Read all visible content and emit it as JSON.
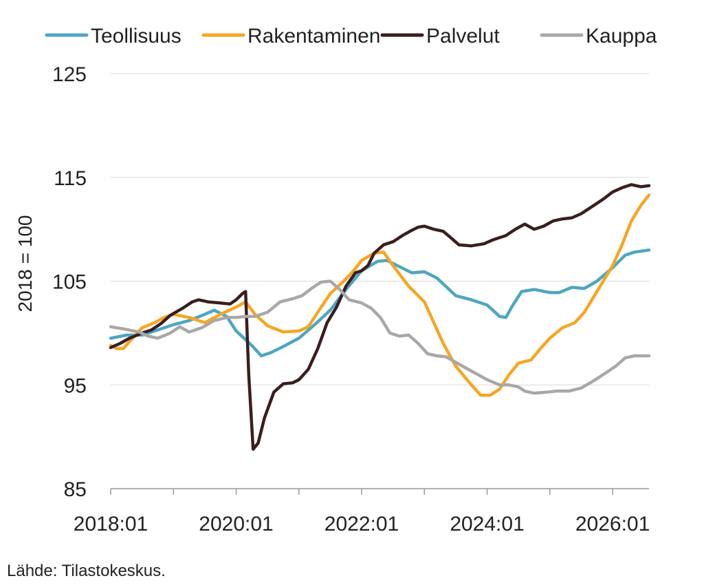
{
  "chart_data": {
    "type": "line",
    "ylabel": "2018 = 100",
    "xlabel": "",
    "ylim": [
      85,
      125
    ],
    "yticks": [
      85,
      95,
      105,
      115,
      125
    ],
    "xlim": [
      2018.0,
      2026.58
    ],
    "xtick_labels": [
      "2018:01",
      "2020:01",
      "2022:01",
      "2024:01",
      "2026:01"
    ],
    "xtick_values": [
      2018.0,
      2020.0,
      2022.0,
      2024.0,
      2026.0
    ],
    "minor_xticks": [
      2019.0,
      2021.0,
      2023.0,
      2025.0
    ],
    "grid": "horizontal",
    "legend_position": "top",
    "series": [
      {
        "name": "Teollisuus",
        "color": "#4ea6c1",
        "points": [
          [
            2018.0,
            99.5
          ],
          [
            2018.25,
            99.8
          ],
          [
            2018.5,
            99.8
          ],
          [
            2018.75,
            100.3
          ],
          [
            2019.0,
            100.8
          ],
          [
            2019.25,
            101.2
          ],
          [
            2019.5,
            101.8
          ],
          [
            2019.65,
            102.2
          ],
          [
            2019.85,
            101.6
          ],
          [
            2020.0,
            100.2
          ],
          [
            2020.25,
            98.8
          ],
          [
            2020.4,
            97.8
          ],
          [
            2020.55,
            98.1
          ],
          [
            2020.75,
            98.7
          ],
          [
            2021.0,
            99.5
          ],
          [
            2021.25,
            100.8
          ],
          [
            2021.5,
            102.2
          ],
          [
            2021.75,
            104.2
          ],
          [
            2022.0,
            106.0
          ],
          [
            2022.25,
            106.9
          ],
          [
            2022.4,
            107.0
          ],
          [
            2022.6,
            106.4
          ],
          [
            2022.8,
            105.8
          ],
          [
            2023.0,
            105.9
          ],
          [
            2023.2,
            105.3
          ],
          [
            2023.5,
            103.6
          ],
          [
            2023.75,
            103.2
          ],
          [
            2024.0,
            102.7
          ],
          [
            2024.2,
            101.6
          ],
          [
            2024.3,
            101.5
          ],
          [
            2024.4,
            102.6
          ],
          [
            2024.55,
            104.0
          ],
          [
            2024.75,
            104.2
          ],
          [
            2025.0,
            103.9
          ],
          [
            2025.15,
            103.9
          ],
          [
            2025.35,
            104.4
          ],
          [
            2025.55,
            104.3
          ],
          [
            2025.75,
            105.0
          ],
          [
            2026.0,
            106.3
          ],
          [
            2026.2,
            107.5
          ],
          [
            2026.35,
            107.8
          ],
          [
            2026.58,
            108.0
          ]
        ]
      },
      {
        "name": "Rakentaminen",
        "color": "#f5a623",
        "points": [
          [
            2018.0,
            98.8
          ],
          [
            2018.1,
            98.5
          ],
          [
            2018.2,
            98.5
          ],
          [
            2018.35,
            99.5
          ],
          [
            2018.5,
            100.5
          ],
          [
            2018.7,
            101.0
          ],
          [
            2018.85,
            101.5
          ],
          [
            2019.0,
            101.8
          ],
          [
            2019.25,
            101.5
          ],
          [
            2019.5,
            101.0
          ],
          [
            2019.75,
            101.8
          ],
          [
            2020.0,
            102.5
          ],
          [
            2020.15,
            103.0
          ],
          [
            2020.3,
            101.8
          ],
          [
            2020.5,
            100.7
          ],
          [
            2020.75,
            100.1
          ],
          [
            2021.0,
            100.2
          ],
          [
            2021.15,
            100.6
          ],
          [
            2021.3,
            102.0
          ],
          [
            2021.5,
            103.8
          ],
          [
            2021.75,
            105.2
          ],
          [
            2021.9,
            106.2
          ],
          [
            2022.0,
            107.0
          ],
          [
            2022.2,
            107.7
          ],
          [
            2022.35,
            107.8
          ],
          [
            2022.5,
            106.5
          ],
          [
            2022.75,
            104.5
          ],
          [
            2023.0,
            103.0
          ],
          [
            2023.15,
            101.0
          ],
          [
            2023.3,
            99.0
          ],
          [
            2023.5,
            96.8
          ],
          [
            2023.75,
            95.0
          ],
          [
            2023.9,
            94.0
          ],
          [
            2024.05,
            94.0
          ],
          [
            2024.2,
            94.6
          ],
          [
            2024.35,
            96.0
          ],
          [
            2024.5,
            97.1
          ],
          [
            2024.7,
            97.4
          ],
          [
            2024.85,
            98.5
          ],
          [
            2025.0,
            99.5
          ],
          [
            2025.2,
            100.5
          ],
          [
            2025.4,
            101.0
          ],
          [
            2025.55,
            102.0
          ],
          [
            2025.75,
            104.0
          ],
          [
            2026.0,
            106.5
          ],
          [
            2026.15,
            108.5
          ],
          [
            2026.3,
            110.8
          ],
          [
            2026.45,
            112.3
          ],
          [
            2026.58,
            113.3
          ]
        ]
      },
      {
        "name": "Palvelut",
        "color": "#3a1f1f",
        "points": [
          [
            2018.0,
            98.6
          ],
          [
            2018.15,
            99.0
          ],
          [
            2018.3,
            99.5
          ],
          [
            2018.5,
            100.0
          ],
          [
            2018.65,
            100.3
          ],
          [
            2018.8,
            100.9
          ],
          [
            2018.95,
            101.7
          ],
          [
            2019.15,
            102.4
          ],
          [
            2019.3,
            103.0
          ],
          [
            2019.4,
            103.2
          ],
          [
            2019.55,
            103.0
          ],
          [
            2019.75,
            102.9
          ],
          [
            2019.9,
            102.8
          ],
          [
            2020.0,
            103.2
          ],
          [
            2020.1,
            103.8
          ],
          [
            2020.15,
            104.0
          ],
          [
            2020.2,
            96.0
          ],
          [
            2020.27,
            88.8
          ],
          [
            2020.35,
            89.4
          ],
          [
            2020.45,
            91.8
          ],
          [
            2020.6,
            94.3
          ],
          [
            2020.75,
            95.1
          ],
          [
            2020.9,
            95.2
          ],
          [
            2021.0,
            95.5
          ],
          [
            2021.15,
            96.5
          ],
          [
            2021.3,
            98.5
          ],
          [
            2021.45,
            101.0
          ],
          [
            2021.6,
            102.5
          ],
          [
            2021.75,
            104.5
          ],
          [
            2021.9,
            105.8
          ],
          [
            2022.0,
            106.0
          ],
          [
            2022.1,
            106.5
          ],
          [
            2022.2,
            107.7
          ],
          [
            2022.35,
            108.5
          ],
          [
            2022.5,
            108.8
          ],
          [
            2022.65,
            109.4
          ],
          [
            2022.8,
            109.9
          ],
          [
            2022.9,
            110.2
          ],
          [
            2023.0,
            110.3
          ],
          [
            2023.15,
            110.0
          ],
          [
            2023.3,
            109.8
          ],
          [
            2023.4,
            109.3
          ],
          [
            2023.55,
            108.5
          ],
          [
            2023.75,
            108.4
          ],
          [
            2023.95,
            108.6
          ],
          [
            2024.1,
            109.0
          ],
          [
            2024.3,
            109.4
          ],
          [
            2024.45,
            110.0
          ],
          [
            2024.6,
            110.5
          ],
          [
            2024.75,
            110.0
          ],
          [
            2024.9,
            110.3
          ],
          [
            2025.05,
            110.8
          ],
          [
            2025.2,
            111.0
          ],
          [
            2025.35,
            111.1
          ],
          [
            2025.5,
            111.5
          ],
          [
            2025.7,
            112.3
          ],
          [
            2025.85,
            112.9
          ],
          [
            2026.0,
            113.6
          ],
          [
            2026.15,
            114.0
          ],
          [
            2026.3,
            114.3
          ],
          [
            2026.45,
            114.1
          ],
          [
            2026.58,
            114.2
          ]
        ]
      },
      {
        "name": "Kauppa",
        "color": "#a8a8a8",
        "points": [
          [
            2018.0,
            100.6
          ],
          [
            2018.2,
            100.4
          ],
          [
            2018.45,
            100.1
          ],
          [
            2018.6,
            99.7
          ],
          [
            2018.75,
            99.5
          ],
          [
            2018.95,
            100.0
          ],
          [
            2019.1,
            100.6
          ],
          [
            2019.25,
            100.1
          ],
          [
            2019.45,
            100.5
          ],
          [
            2019.65,
            101.2
          ],
          [
            2019.85,
            101.5
          ],
          [
            2020.0,
            101.5
          ],
          [
            2020.15,
            101.6
          ],
          [
            2020.3,
            101.6
          ],
          [
            2020.5,
            102.0
          ],
          [
            2020.7,
            103.0
          ],
          [
            2020.9,
            103.3
          ],
          [
            2021.05,
            103.6
          ],
          [
            2021.2,
            104.3
          ],
          [
            2021.35,
            104.9
          ],
          [
            2021.5,
            105.0
          ],
          [
            2021.65,
            104.2
          ],
          [
            2021.8,
            103.2
          ],
          [
            2022.0,
            102.9
          ],
          [
            2022.15,
            102.4
          ],
          [
            2022.3,
            101.5
          ],
          [
            2022.45,
            100.0
          ],
          [
            2022.6,
            99.7
          ],
          [
            2022.75,
            99.8
          ],
          [
            2022.9,
            99.0
          ],
          [
            2023.05,
            98.0
          ],
          [
            2023.2,
            97.8
          ],
          [
            2023.35,
            97.7
          ],
          [
            2023.55,
            97.0
          ],
          [
            2023.7,
            96.5
          ],
          [
            2023.85,
            96.0
          ],
          [
            2024.0,
            95.5
          ],
          [
            2024.2,
            95.0
          ],
          [
            2024.35,
            95.0
          ],
          [
            2024.5,
            94.8
          ],
          [
            2024.6,
            94.4
          ],
          [
            2024.75,
            94.2
          ],
          [
            2024.95,
            94.3
          ],
          [
            2025.1,
            94.4
          ],
          [
            2025.3,
            94.4
          ],
          [
            2025.5,
            94.7
          ],
          [
            2025.7,
            95.4
          ],
          [
            2025.9,
            96.2
          ],
          [
            2026.05,
            96.8
          ],
          [
            2026.2,
            97.6
          ],
          [
            2026.35,
            97.8
          ],
          [
            2026.58,
            97.8
          ]
        ]
      }
    ]
  },
  "source_note": "Lähde: Tilastokeskus."
}
